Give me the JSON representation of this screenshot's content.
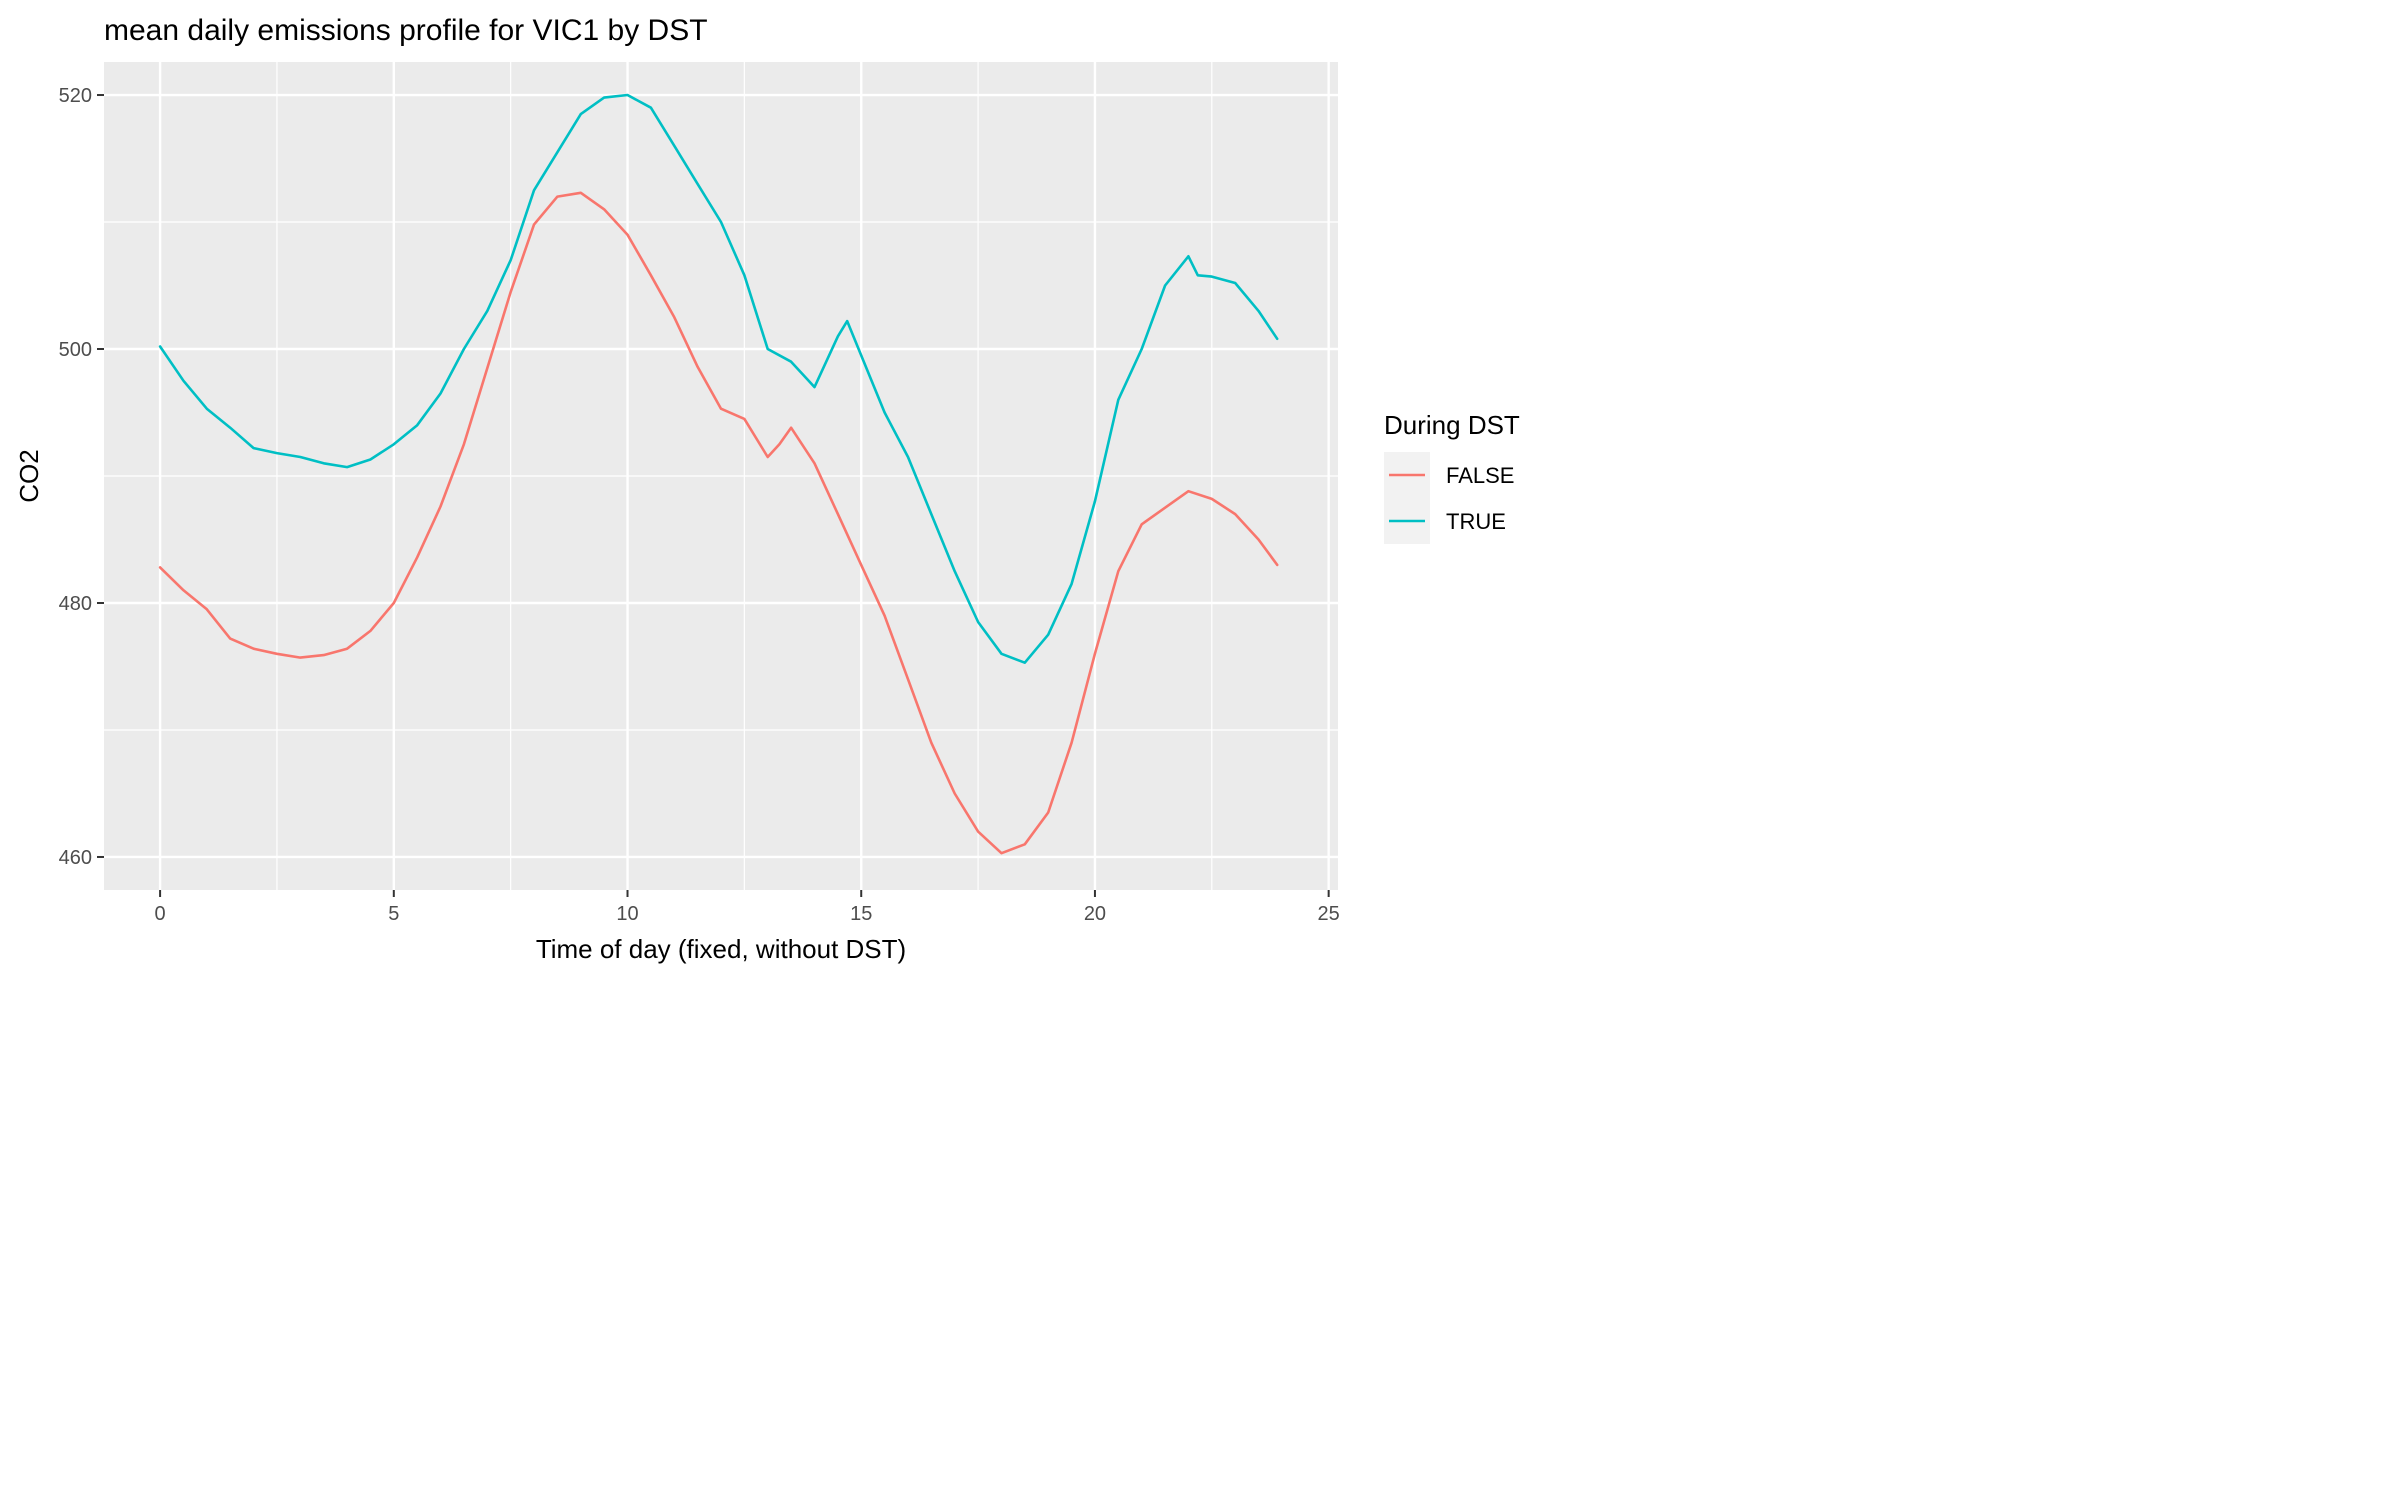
{
  "chart_data": {
    "type": "line",
    "title": "mean daily emissions profile for VIC1 by DST",
    "xlabel": "Time of day (fixed, without DST)",
    "ylabel": "CO2",
    "xlim": [
      -1.2,
      25.2
    ],
    "ylim": [
      457.4,
      522.6
    ],
    "x_ticks": [
      0,
      5,
      10,
      15,
      20,
      25
    ],
    "y_ticks": [
      460,
      480,
      500,
      520
    ],
    "grid": true,
    "legend": {
      "title": "During DST",
      "position": "right"
    },
    "colors": {
      "FALSE": "#F8766D",
      "TRUE": "#00BFC4",
      "panel": "#EBEBEB",
      "grid": "#FFFFFF"
    },
    "series": [
      {
        "name": "FALSE",
        "color": "#F8766D",
        "points": [
          [
            0,
            482.8
          ],
          [
            0.5,
            481.0
          ],
          [
            1,
            479.5
          ],
          [
            1.5,
            477.2
          ],
          [
            2,
            476.4
          ],
          [
            2.5,
            476.0
          ],
          [
            3,
            475.7
          ],
          [
            3.5,
            475.9
          ],
          [
            4,
            476.4
          ],
          [
            4.5,
            477.8
          ],
          [
            5,
            480.0
          ],
          [
            5.5,
            483.6
          ],
          [
            6,
            487.6
          ],
          [
            6.5,
            492.5
          ],
          [
            7,
            498.5
          ],
          [
            7.5,
            504.5
          ],
          [
            8,
            509.8
          ],
          [
            8.5,
            512.0
          ],
          [
            9,
            512.3
          ],
          [
            9.5,
            511.0
          ],
          [
            10,
            509.0
          ],
          [
            10.5,
            505.8
          ],
          [
            11,
            502.5
          ],
          [
            11.5,
            498.6
          ],
          [
            12,
            495.3
          ],
          [
            12.5,
            494.5
          ],
          [
            13,
            491.5
          ],
          [
            13.25,
            492.5
          ],
          [
            13.5,
            493.8
          ],
          [
            14,
            491.0
          ],
          [
            14.5,
            487.0
          ],
          [
            15,
            483.0
          ],
          [
            15.5,
            479.0
          ],
          [
            16,
            474.0
          ],
          [
            16.5,
            469.0
          ],
          [
            17,
            465.0
          ],
          [
            17.5,
            462.0
          ],
          [
            18,
            460.3
          ],
          [
            18.5,
            461.0
          ],
          [
            19,
            463.5
          ],
          [
            19.5,
            469.0
          ],
          [
            20,
            476.0
          ],
          [
            20.5,
            482.5
          ],
          [
            21,
            486.2
          ],
          [
            21.5,
            487.5
          ],
          [
            22,
            488.8
          ],
          [
            22.5,
            488.2
          ],
          [
            23,
            487.0
          ],
          [
            23.5,
            485.0
          ],
          [
            23.9,
            483.0
          ]
        ]
      },
      {
        "name": "TRUE",
        "color": "#00BFC4",
        "points": [
          [
            0,
            500.2
          ],
          [
            0.5,
            497.5
          ],
          [
            1,
            495.3
          ],
          [
            1.5,
            493.8
          ],
          [
            2,
            492.2
          ],
          [
            2.5,
            491.8
          ],
          [
            3,
            491.5
          ],
          [
            3.5,
            491.0
          ],
          [
            4,
            490.7
          ],
          [
            4.5,
            491.3
          ],
          [
            5,
            492.5
          ],
          [
            5.5,
            494.0
          ],
          [
            6,
            496.5
          ],
          [
            6.5,
            500.0
          ],
          [
            7,
            503.0
          ],
          [
            7.5,
            507.0
          ],
          [
            8,
            512.5
          ],
          [
            8.5,
            515.5
          ],
          [
            9,
            518.5
          ],
          [
            9.5,
            519.8
          ],
          [
            10,
            520.0
          ],
          [
            10.5,
            519.0
          ],
          [
            11,
            516.0
          ],
          [
            11.5,
            513.0
          ],
          [
            12,
            510.0
          ],
          [
            12.5,
            505.8
          ],
          [
            13,
            500.0
          ],
          [
            13.5,
            499.0
          ],
          [
            14,
            497.0
          ],
          [
            14.5,
            501.0
          ],
          [
            14.7,
            502.2
          ],
          [
            15,
            499.5
          ],
          [
            15.5,
            495.0
          ],
          [
            16,
            491.5
          ],
          [
            16.5,
            487.0
          ],
          [
            17,
            482.5
          ],
          [
            17.5,
            478.5
          ],
          [
            18,
            476.0
          ],
          [
            18.5,
            475.3
          ],
          [
            19,
            477.5
          ],
          [
            19.5,
            481.5
          ],
          [
            20,
            488.0
          ],
          [
            20.5,
            496.0
          ],
          [
            21,
            500.0
          ],
          [
            21.5,
            505.0
          ],
          [
            22,
            507.3
          ],
          [
            22.2,
            505.8
          ],
          [
            22.5,
            505.7
          ],
          [
            23,
            505.2
          ],
          [
            23.5,
            503.0
          ],
          [
            23.9,
            500.8
          ]
        ]
      }
    ]
  }
}
